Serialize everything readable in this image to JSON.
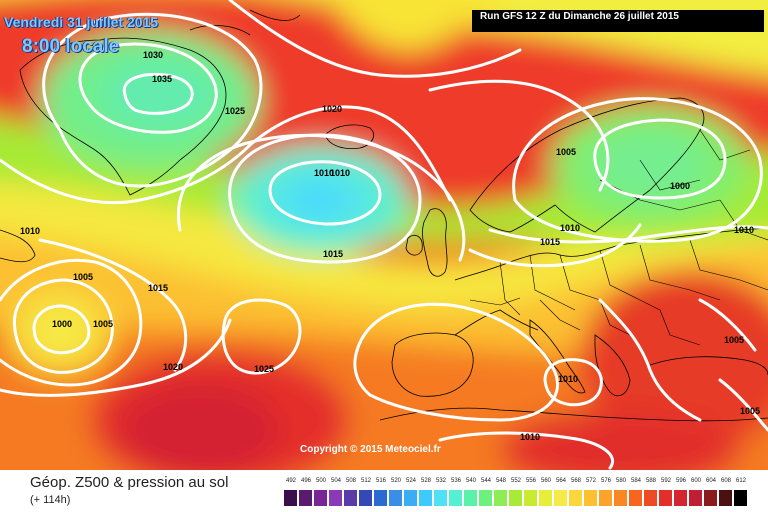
{
  "header": {
    "date": "Vendredi 31 juillet 2015",
    "time": "8:00 locale",
    "run": "Run GFS 12 Z du Dimanche 26 juillet 2015"
  },
  "map": {
    "copyright": "Copyright © 2015 Meteociel.fr",
    "pressure_labels": [
      "1030",
      "1035",
      "1025",
      "1020",
      "1010",
      "1010",
      "1015",
      "1005",
      "1000",
      "1010",
      "1015",
      "1010",
      "1010",
      "1005",
      "1000",
      "1005",
      "1015",
      "1020",
      "1025",
      "1010",
      "1005",
      "1005",
      "1010"
    ],
    "geopotential_colors": {
      "low": "#5ee8ff",
      "mid": "#9aee33",
      "high": "#ee2a2a"
    }
  },
  "footer": {
    "title": "Géop. Z500 & pression au sol",
    "subtitle": "(+ 114h)"
  },
  "legend": {
    "labels": [
      "492",
      "496",
      "500",
      "504",
      "508",
      "512",
      "516",
      "520",
      "524",
      "528",
      "532",
      "536",
      "540",
      "544",
      "548",
      "552",
      "556",
      "560",
      "564",
      "568",
      "572",
      "576",
      "580",
      "584",
      "588",
      "592",
      "596",
      "600",
      "604",
      "608",
      "612"
    ],
    "colors": [
      "#3d0f4a",
      "#5a1a70",
      "#7a2596",
      "#8a3ab4",
      "#5a3ca8",
      "#3448b8",
      "#2a6ad2",
      "#3a8ee6",
      "#3aaef4",
      "#3ccbfa",
      "#50e2f4",
      "#55f0d4",
      "#5af2a8",
      "#6cf07e",
      "#8cee54",
      "#a8ea38",
      "#c8ea30",
      "#e6ee3a",
      "#f6ea4a",
      "#fad83c",
      "#fcc030",
      "#fca42a",
      "#fa8624",
      "#f6661e",
      "#ee4a24",
      "#e42e2a",
      "#d42430",
      "#c01e32",
      "#8a1a1e",
      "#4a120e",
      "#000000"
    ]
  }
}
